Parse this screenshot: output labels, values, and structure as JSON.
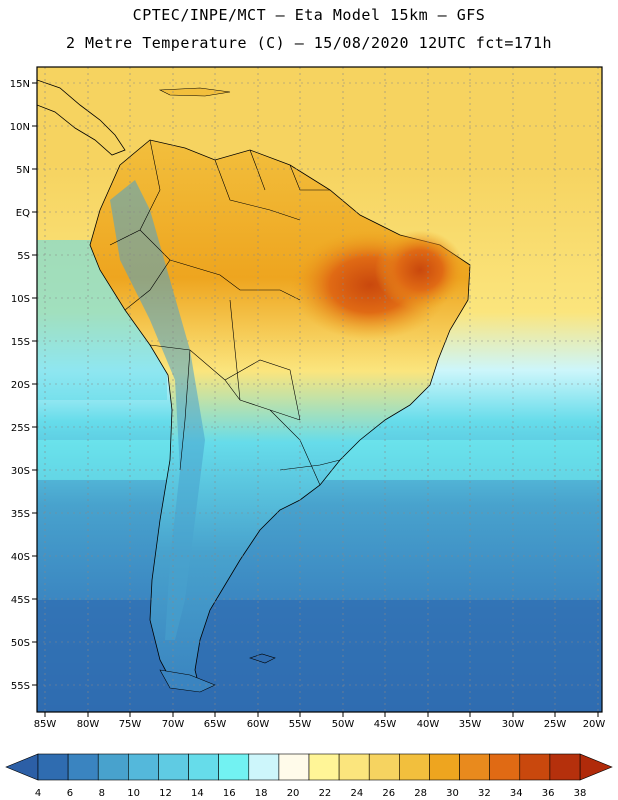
{
  "header": {
    "line1": "CPTEC/INPE/MCT –  Eta Model 15km – GFS",
    "line2": "2 Metre Temperature (C) – 15/08/2020 12UTC fct=171h"
  },
  "axes": {
    "lat_labels": [
      "15N",
      "10N",
      "5N",
      "EQ",
      "5S",
      "10S",
      "15S",
      "20S",
      "25S",
      "30S",
      "35S",
      "40S",
      "45S",
      "50S",
      "55S"
    ],
    "lon_labels": [
      "85W",
      "80W",
      "75W",
      "70W",
      "65W",
      "60W",
      "55W",
      "50W",
      "45W",
      "40W",
      "35W",
      "30W",
      "25W",
      "20W"
    ]
  },
  "colorbar": {
    "labels": [
      "4",
      "6",
      "8",
      "10",
      "12",
      "14",
      "16",
      "18",
      "20",
      "22",
      "24",
      "26",
      "28",
      "30",
      "32",
      "34",
      "36",
      "38"
    ],
    "colors": [
      "#2f6cb0",
      "#3a84c0",
      "#48a2cd",
      "#54b8db",
      "#5fcbe3",
      "#66dcea",
      "#72f2f2",
      "#cdf6fb",
      "#fffbea",
      "#fff597",
      "#fbe57d",
      "#f6d360",
      "#f2bf3d",
      "#eea51f",
      "#e98a1d",
      "#e06a14",
      "#c9480d",
      "#b5300c"
    ],
    "low_end_color": "#2c5fa6",
    "high_end_color": "#b02a0a"
  },
  "map_data": {
    "type": "filled-contour-map",
    "variable": "2 Metre Temperature (C)",
    "lat_range": [
      -58,
      17
    ],
    "lon_range": [
      -86,
      -20
    ],
    "ocean_color": "#3fa0d0",
    "land_color_warm": "#eea51f",
    "land_color_cool": "#5fcbe3"
  }
}
